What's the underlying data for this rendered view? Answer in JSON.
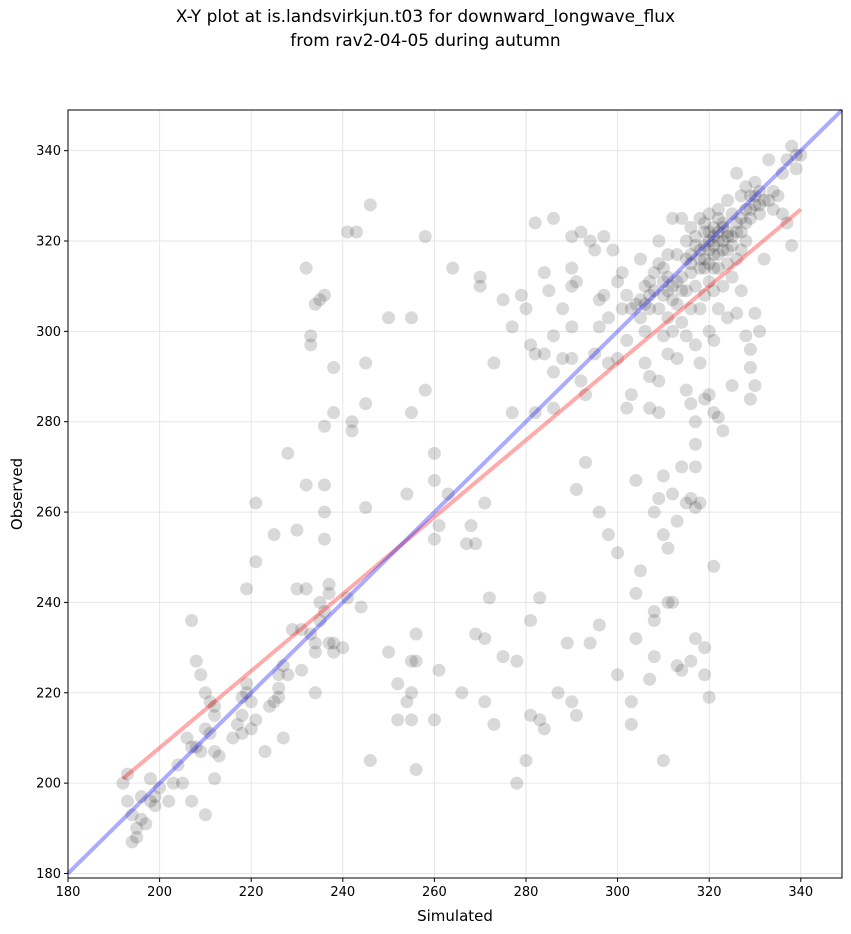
{
  "chart_data": {
    "type": "scatter",
    "title": "X-Y plot at is.landsvirkjun.t03 for downward_longwave_flux",
    "subtitle": "from rav2-04-05 during autumn",
    "xlabel": "Simulated",
    "ylabel": "Observed",
    "xlim": [
      180,
      349
    ],
    "ylim": [
      179,
      349
    ],
    "xticks": [
      180,
      200,
      220,
      240,
      260,
      280,
      300,
      320,
      340
    ],
    "yticks": [
      180,
      200,
      220,
      240,
      260,
      280,
      300,
      320,
      340
    ],
    "grid": true,
    "point_color": "#000000",
    "point_alpha": 0.15,
    "one_to_one_line": {
      "x": [
        180,
        349
      ],
      "y": [
        180,
        349
      ],
      "color": "#0000ff"
    },
    "regression_line": {
      "x": [
        192,
        340
      ],
      "y": [
        201,
        327
      ],
      "color": "#ff0000"
    },
    "points": [
      [
        192,
        200
      ],
      [
        193,
        202
      ],
      [
        193,
        196
      ],
      [
        194,
        193
      ],
      [
        194,
        187
      ],
      [
        195,
        190
      ],
      [
        195,
        188
      ],
      [
        196,
        192
      ],
      [
        196,
        197
      ],
      [
        197,
        191
      ],
      [
        198,
        196
      ],
      [
        198,
        201
      ],
      [
        199,
        197
      ],
      [
        200,
        199
      ],
      [
        199,
        195
      ],
      [
        202,
        196
      ],
      [
        203,
        200
      ],
      [
        204,
        204
      ],
      [
        205,
        200
      ],
      [
        206,
        210
      ],
      [
        207,
        196
      ],
      [
        207,
        208
      ],
      [
        207,
        236
      ],
      [
        208,
        208
      ],
      [
        208,
        227
      ],
      [
        209,
        207
      ],
      [
        209,
        224
      ],
      [
        210,
        220
      ],
      [
        210,
        212
      ],
      [
        210,
        193
      ],
      [
        211,
        218
      ],
      [
        211,
        211
      ],
      [
        212,
        207
      ],
      [
        212,
        215
      ],
      [
        212,
        201
      ],
      [
        212,
        217
      ],
      [
        213,
        206
      ],
      [
        216,
        210
      ],
      [
        217,
        213
      ],
      [
        218,
        219
      ],
      [
        218,
        211
      ],
      [
        218,
        215
      ],
      [
        219,
        222
      ],
      [
        219,
        243
      ],
      [
        219,
        220
      ],
      [
        220,
        212
      ],
      [
        220,
        218
      ],
      [
        221,
        214
      ],
      [
        221,
        262
      ],
      [
        221,
        249
      ],
      [
        223,
        207
      ],
      [
        224,
        217
      ],
      [
        225,
        218
      ],
      [
        225,
        255
      ],
      [
        226,
        221
      ],
      [
        226,
        219
      ],
      [
        226,
        224
      ],
      [
        227,
        226
      ],
      [
        227,
        210
      ],
      [
        228,
        273
      ],
      [
        228,
        224
      ],
      [
        229,
        234
      ],
      [
        230,
        243
      ],
      [
        230,
        256
      ],
      [
        231,
        225
      ],
      [
        231,
        234
      ],
      [
        232,
        314
      ],
      [
        232,
        243
      ],
      [
        232,
        266
      ],
      [
        233,
        297
      ],
      [
        233,
        299
      ],
      [
        233,
        233
      ],
      [
        234,
        306
      ],
      [
        234,
        231
      ],
      [
        234,
        229
      ],
      [
        234,
        220
      ],
      [
        235,
        307
      ],
      [
        235,
        240
      ],
      [
        235,
        236
      ],
      [
        236,
        308
      ],
      [
        236,
        279
      ],
      [
        236,
        266
      ],
      [
        236,
        260
      ],
      [
        236,
        254
      ],
      [
        236,
        238
      ],
      [
        237,
        242
      ],
      [
        237,
        231
      ],
      [
        237,
        244
      ],
      [
        238,
        282
      ],
      [
        238,
        292
      ],
      [
        238,
        231
      ],
      [
        238,
        229
      ],
      [
        240,
        230
      ],
      [
        241,
        241
      ],
      [
        241,
        322
      ],
      [
        242,
        280
      ],
      [
        242,
        278
      ],
      [
        243,
        322
      ],
      [
        244,
        239
      ],
      [
        245,
        284
      ],
      [
        245,
        293
      ],
      [
        245,
        261
      ],
      [
        246,
        328
      ],
      [
        246,
        205
      ],
      [
        250,
        303
      ],
      [
        250,
        229
      ],
      [
        252,
        222
      ],
      [
        252,
        214
      ],
      [
        254,
        218
      ],
      [
        254,
        264
      ],
      [
        255,
        303
      ],
      [
        255,
        282
      ],
      [
        255,
        214
      ],
      [
        255,
        227
      ],
      [
        255,
        220
      ],
      [
        256,
        233
      ],
      [
        256,
        227
      ],
      [
        256,
        203
      ],
      [
        258,
        321
      ],
      [
        258,
        287
      ],
      [
        260,
        273
      ],
      [
        260,
        267
      ],
      [
        260,
        254
      ],
      [
        260,
        214
      ],
      [
        261,
        257
      ],
      [
        261,
        225
      ],
      [
        263,
        264
      ],
      [
        264,
        314
      ],
      [
        266,
        220
      ],
      [
        267,
        253
      ],
      [
        268,
        257
      ],
      [
        269,
        233
      ],
      [
        269,
        253
      ],
      [
        270,
        312
      ],
      [
        270,
        310
      ],
      [
        271,
        218
      ],
      [
        271,
        232
      ],
      [
        271,
        262
      ],
      [
        272,
        241
      ],
      [
        273,
        293
      ],
      [
        273,
        213
      ],
      [
        275,
        307
      ],
      [
        275,
        228
      ],
      [
        277,
        282
      ],
      [
        277,
        301
      ],
      [
        278,
        227
      ],
      [
        278,
        200
      ],
      [
        279,
        308
      ],
      [
        280,
        205
      ],
      [
        280,
        305
      ],
      [
        281,
        297
      ],
      [
        281,
        215
      ],
      [
        281,
        236
      ],
      [
        282,
        324
      ],
      [
        282,
        282
      ],
      [
        282,
        295
      ],
      [
        283,
        241
      ],
      [
        283,
        214
      ],
      [
        284,
        313
      ],
      [
        284,
        295
      ],
      [
        284,
        212
      ],
      [
        285,
        309
      ],
      [
        286,
        325
      ],
      [
        286,
        291
      ],
      [
        286,
        283
      ],
      [
        286,
        299
      ],
      [
        287,
        220
      ],
      [
        288,
        305
      ],
      [
        288,
        294
      ],
      [
        289,
        231
      ],
      [
        290,
        321
      ],
      [
        290,
        310
      ],
      [
        290,
        301
      ],
      [
        290,
        314
      ],
      [
        290,
        294
      ],
      [
        290,
        218
      ],
      [
        291,
        311
      ],
      [
        291,
        265
      ],
      [
        291,
        215
      ],
      [
        292,
        322
      ],
      [
        292,
        289
      ],
      [
        293,
        271
      ],
      [
        293,
        286
      ],
      [
        294,
        231
      ],
      [
        294,
        320
      ],
      [
        295,
        318
      ],
      [
        295,
        295
      ],
      [
        296,
        260
      ],
      [
        296,
        235
      ],
      [
        296,
        307
      ],
      [
        296,
        301
      ],
      [
        297,
        321
      ],
      [
        297,
        308
      ],
      [
        298,
        303
      ],
      [
        298,
        255
      ],
      [
        298,
        293
      ],
      [
        299,
        318
      ],
      [
        300,
        311
      ],
      [
        300,
        251
      ],
      [
        300,
        224
      ],
      [
        300,
        294
      ],
      [
        301,
        313
      ],
      [
        301,
        305
      ],
      [
        302,
        308
      ],
      [
        302,
        283
      ],
      [
        302,
        298
      ],
      [
        303,
        286
      ],
      [
        303,
        218
      ],
      [
        303,
        213
      ],
      [
        304,
        242
      ],
      [
        304,
        232
      ],
      [
        304,
        267
      ],
      [
        305,
        247
      ],
      [
        305,
        316
      ],
      [
        305,
        307
      ],
      [
        306,
        310
      ],
      [
        306,
        300
      ],
      [
        306,
        293
      ],
      [
        307,
        223
      ],
      [
        307,
        311
      ],
      [
        307,
        305
      ],
      [
        307,
        290
      ],
      [
        307,
        283
      ],
      [
        308,
        313
      ],
      [
        308,
        236
      ],
      [
        308,
        238
      ],
      [
        308,
        260
      ],
      [
        308,
        228
      ],
      [
        309,
        320
      ],
      [
        309,
        305
      ],
      [
        309,
        289
      ],
      [
        309,
        282
      ],
      [
        309,
        263
      ],
      [
        310,
        314
      ],
      [
        310,
        308
      ],
      [
        310,
        299
      ],
      [
        310,
        268
      ],
      [
        310,
        255
      ],
      [
        310,
        205
      ],
      [
        311,
        312
      ],
      [
        311,
        303
      ],
      [
        311,
        295
      ],
      [
        311,
        252
      ],
      [
        311,
        240
      ],
      [
        312,
        325
      ],
      [
        312,
        310
      ],
      [
        312,
        300
      ],
      [
        312,
        264
      ],
      [
        312,
        240
      ],
      [
        313,
        317
      ],
      [
        313,
        306
      ],
      [
        313,
        294
      ],
      [
        313,
        258
      ],
      [
        313,
        226
      ],
      [
        314,
        325
      ],
      [
        314,
        312
      ],
      [
        314,
        302
      ],
      [
        314,
        270
      ],
      [
        314,
        225
      ],
      [
        315,
        320
      ],
      [
        315,
        309
      ],
      [
        315,
        299
      ],
      [
        315,
        287
      ],
      [
        315,
        262
      ],
      [
        316,
        323
      ],
      [
        316,
        315
      ],
      [
        316,
        305
      ],
      [
        316,
        284
      ],
      [
        316,
        227
      ],
      [
        316,
        263
      ],
      [
        317,
        321
      ],
      [
        317,
        310
      ],
      [
        317,
        297
      ],
      [
        317,
        280
      ],
      [
        317,
        232
      ],
      [
        317,
        270
      ],
      [
        317,
        275
      ],
      [
        317,
        261
      ],
      [
        318,
        325
      ],
      [
        318,
        316
      ],
      [
        318,
        305
      ],
      [
        318,
        293
      ],
      [
        318,
        262
      ],
      [
        319,
        322
      ],
      [
        319,
        314
      ],
      [
        319,
        308
      ],
      [
        319,
        285
      ],
      [
        319,
        230
      ],
      [
        319,
        224
      ],
      [
        320,
        326
      ],
      [
        320,
        318
      ],
      [
        320,
        311
      ],
      [
        320,
        300
      ],
      [
        320,
        219
      ],
      [
        320,
        286
      ],
      [
        321,
        323
      ],
      [
        321,
        317
      ],
      [
        321,
        309
      ],
      [
        321,
        298
      ],
      [
        321,
        248
      ],
      [
        321,
        282
      ],
      [
        322,
        327
      ],
      [
        322,
        320
      ],
      [
        322,
        314
      ],
      [
        322,
        305
      ],
      [
        322,
        281
      ],
      [
        323,
        324
      ],
      [
        323,
        318
      ],
      [
        323,
        310
      ],
      [
        323,
        278
      ],
      [
        324,
        329
      ],
      [
        324,
        321
      ],
      [
        324,
        315
      ],
      [
        324,
        303
      ],
      [
        325,
        326
      ],
      [
        325,
        319
      ],
      [
        325,
        312
      ],
      [
        325,
        288
      ],
      [
        326,
        335
      ],
      [
        326,
        322
      ],
      [
        326,
        316
      ],
      [
        326,
        304
      ],
      [
        327,
        330
      ],
      [
        327,
        325
      ],
      [
        327,
        318
      ],
      [
        327,
        309
      ],
      [
        328,
        332
      ],
      [
        328,
        327
      ],
      [
        328,
        320
      ],
      [
        328,
        299
      ],
      [
        329,
        330
      ],
      [
        329,
        325
      ],
      [
        329,
        296
      ],
      [
        329,
        285
      ],
      [
        329,
        292
      ],
      [
        330,
        333
      ],
      [
        330,
        328
      ],
      [
        330,
        304
      ],
      [
        330,
        288
      ],
      [
        331,
        331
      ],
      [
        331,
        326
      ],
      [
        331,
        300
      ],
      [
        332,
        329
      ],
      [
        332,
        316
      ],
      [
        333,
        338
      ],
      [
        333,
        329
      ],
      [
        334,
        331
      ],
      [
        334,
        327
      ],
      [
        335,
        330
      ],
      [
        336,
        335
      ],
      [
        336,
        326
      ],
      [
        337,
        324
      ],
      [
        337,
        338
      ],
      [
        338,
        341
      ],
      [
        338,
        319
      ],
      [
        339,
        336
      ],
      [
        339,
        339
      ],
      [
        340,
        339
      ],
      [
        316,
        317
      ],
      [
        318,
        318
      ],
      [
        319,
        319
      ],
      [
        320,
        320
      ],
      [
        321,
        321
      ],
      [
        322,
        322
      ],
      [
        323,
        323
      ],
      [
        319,
        316
      ],
      [
        321,
        319
      ],
      [
        322,
        317
      ],
      [
        323,
        320
      ],
      [
        324,
        322
      ],
      [
        320,
        315
      ],
      [
        318,
        314
      ],
      [
        322,
        325
      ],
      [
        320,
        322
      ],
      [
        319,
        324
      ],
      [
        317,
        319
      ],
      [
        321,
        314
      ],
      [
        316,
        313
      ],
      [
        315,
        316
      ],
      [
        324,
        318
      ],
      [
        325,
        321
      ],
      [
        326,
        324
      ],
      [
        327,
        322
      ],
      [
        328,
        324
      ],
      [
        329,
        327
      ],
      [
        330,
        330
      ],
      [
        331,
        328
      ],
      [
        310,
        311
      ],
      [
        311,
        309
      ],
      [
        312,
        307
      ],
      [
        313,
        311
      ],
      [
        314,
        309
      ],
      [
        308,
        309
      ],
      [
        307,
        308
      ],
      [
        306,
        306
      ],
      [
        305,
        303
      ],
      [
        304,
        306
      ],
      [
        303,
        305
      ],
      [
        309,
        315
      ],
      [
        311,
        317
      ]
    ]
  }
}
